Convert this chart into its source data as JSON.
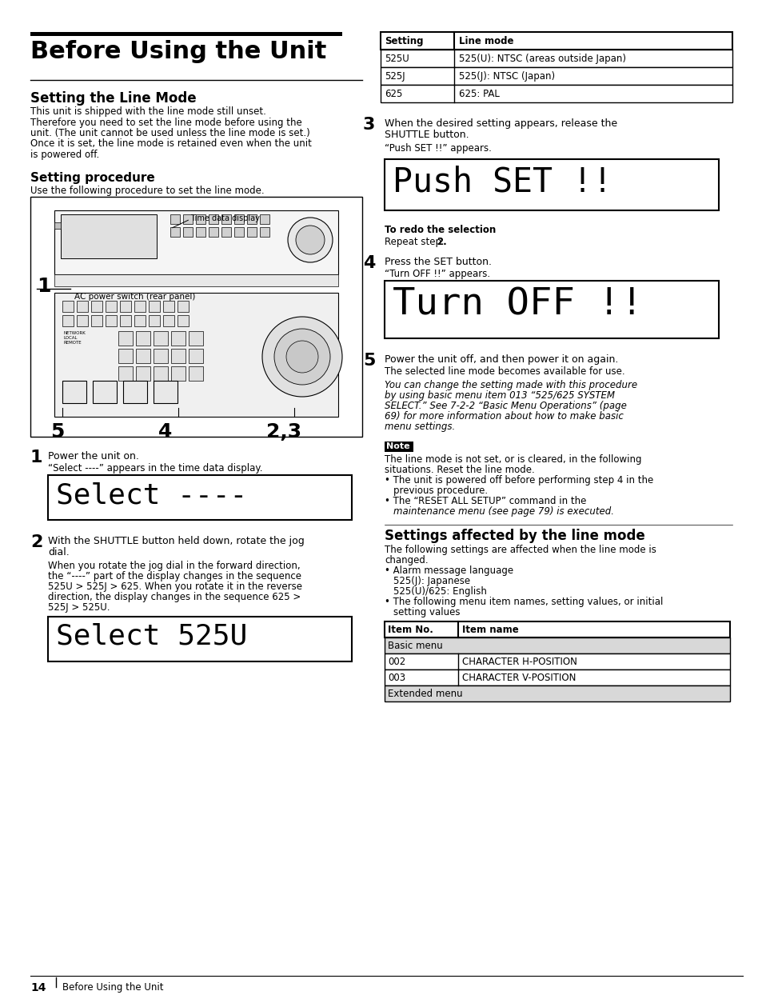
{
  "title": "Before Using the Unit",
  "section1": "Setting the Line Mode",
  "section1_body": [
    "This unit is shipped with the line mode still unset.",
    "Therefore you need to set the line mode before using the",
    "unit. (The unit cannot be used unless the line mode is set.)",
    "Once it is set, the line mode is retained even when the unit",
    "is powered off."
  ],
  "section2": "Setting procedure",
  "section2_intro": "Use the following procedure to set the line mode.",
  "table1_headers": [
    "Setting",
    "Line mode"
  ],
  "table1_rows": [
    [
      "525U",
      "525(U): NTSC (areas outside Japan)"
    ],
    [
      "525J",
      "525(J): NTSC (Japan)"
    ],
    [
      "625",
      "625: PAL"
    ]
  ],
  "step1_text": "Power the unit on.",
  "step1_sub": "“Select ----” appears in the time data display.",
  "display1_text": "Select ----",
  "step2_text": [
    "With the SHUTTLE button held down, rotate the jog",
    "dial."
  ],
  "step2_sub": [
    "When you rotate the jog dial in the forward direction,",
    "the “----” part of the display changes in the sequence",
    "525U > 525J > 625. When you rotate it in the reverse",
    "direction, the display changes in the sequence 625 >",
    "525J > 525U."
  ],
  "display2_text": "Select 525U",
  "step3_text": [
    "When the desired setting appears, release the",
    "SHUTTLE button."
  ],
  "step3_sub": "“Push SET !!” appears.",
  "display3_text": "Push SET !!",
  "redo_bold": "To redo the selection",
  "redo_text": "Repeat step ",
  "redo_bold2": "2.",
  "step4_text": "Press the SET button.",
  "step4_sub": "“Turn OFF !!” appears.",
  "display4_text": "Turn OFF !!",
  "step5_text": "Power the unit off, and then power it on again.",
  "step5_sub": "The selected line mode becomes available for use.",
  "step5_italic": [
    "You can change the setting made with this procedure",
    "by using basic menu item 013 “525/625 SYSTEM",
    "SELECT.” See 7-2-2 “Basic Menu Operations” (page",
    "69) for more information about how to make basic",
    "menu settings."
  ],
  "note_label": "Note",
  "note_text": [
    "The line mode is not set, or is cleared, in the following",
    "situations. Reset the line mode."
  ],
  "note_bullets": [
    [
      "The unit is powered off before performing step 4 in the",
      "previous procedure."
    ],
    [
      "The “RESET ALL SETUP” command in the",
      "maintenance menu (see page 79) is executed."
    ]
  ],
  "section3": "Settings affected by the line mode",
  "section3_intro": [
    "The following settings are affected when the line mode is",
    "changed."
  ],
  "section3_b1": [
    "Alarm message language",
    "525(J): Japanese",
    "525(U)/625: English"
  ],
  "section3_b2": [
    "The following menu item names, setting values, or initial",
    "setting values"
  ],
  "table2_headers": [
    "Item No.",
    "Item name"
  ],
  "table2_rows": [
    [
      "Basic menu",
      ""
    ],
    [
      "002",
      "CHARACTER H-POSITION"
    ],
    [
      "003",
      "CHARACTER V-POSITION"
    ],
    [
      "Extended menu",
      ""
    ]
  ],
  "footer_num": "14",
  "footer_text": "Before Using the Unit"
}
